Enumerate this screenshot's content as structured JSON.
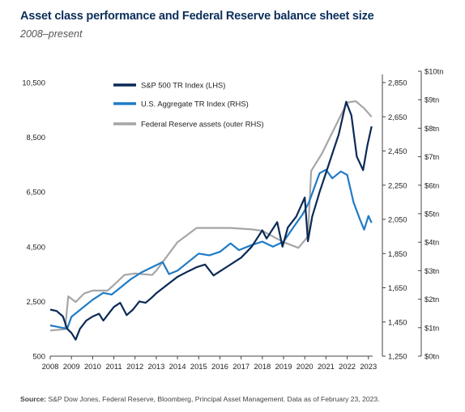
{
  "title": "Asset class performance and Federal Reserve balance sheet size",
  "subtitle": "2008–present",
  "source_label": "Source:",
  "source_text": "S&P Dow Jones, Federal Reserve, Bloomberg, Principal Asset Management. Data as of February 23, 2023.",
  "chart_data": {
    "type": "line",
    "title": "Asset class performance and Federal Reserve balance sheet size",
    "subtitle": "2008–present",
    "x_range": [
      2008.0,
      2023.2
    ],
    "x_ticks": [
      "2008",
      "2009",
      "2010",
      "2011",
      "2012",
      "2013",
      "2014",
      "2015",
      "2016",
      "2017",
      "2018",
      "2019",
      "2020",
      "2021",
      "2022",
      "2023"
    ],
    "axes": {
      "left": {
        "ylim": [
          500,
          10500
        ],
        "ticks": [
          "500",
          "2,500",
          "4,500",
          "6,500",
          "8,500",
          "10,500"
        ]
      },
      "right": {
        "ylim": [
          1250,
          2850
        ],
        "ticks": [
          "1,250",
          "1,450",
          "1,650",
          "1,850",
          "2,050",
          "2,250",
          "2,450",
          "2,650",
          "2,850"
        ]
      },
      "outer_right": {
        "ylim": [
          0,
          10
        ],
        "ticks": [
          "$0tn",
          "$1tn",
          "$2tn",
          "$3tn",
          "$4tn",
          "$5tn",
          "$6tn",
          "$7tn",
          "$8tn",
          "$9tn",
          "$10tn"
        ]
      }
    },
    "legend_position": "top-left",
    "series": [
      {
        "name": "S&P 500 TR Index (LHS)",
        "axis": "left",
        "color": "#0b2a55",
        "points": [
          [
            2008.0,
            2200
          ],
          [
            2008.3,
            2150
          ],
          [
            2008.6,
            1950
          ],
          [
            2008.8,
            1500
          ],
          [
            2009.0,
            1350
          ],
          [
            2009.2,
            1100
          ],
          [
            2009.4,
            1500
          ],
          [
            2009.7,
            1800
          ],
          [
            2010.0,
            1950
          ],
          [
            2010.3,
            2050
          ],
          [
            2010.5,
            1800
          ],
          [
            2010.8,
            2100
          ],
          [
            2011.0,
            2300
          ],
          [
            2011.3,
            2450
          ],
          [
            2011.6,
            2000
          ],
          [
            2011.9,
            2200
          ],
          [
            2012.2,
            2500
          ],
          [
            2012.5,
            2450
          ],
          [
            2012.8,
            2650
          ],
          [
            2013.0,
            2800
          ],
          [
            2013.5,
            3100
          ],
          [
            2014.0,
            3400
          ],
          [
            2014.5,
            3600
          ],
          [
            2014.9,
            3750
          ],
          [
            2015.3,
            3850
          ],
          [
            2015.7,
            3450
          ],
          [
            2016.0,
            3600
          ],
          [
            2016.4,
            3800
          ],
          [
            2016.8,
            4000
          ],
          [
            2017.0,
            4100
          ],
          [
            2017.5,
            4500
          ],
          [
            2018.0,
            5100
          ],
          [
            2018.2,
            4800
          ],
          [
            2018.7,
            5400
          ],
          [
            2018.95,
            4500
          ],
          [
            2019.2,
            5200
          ],
          [
            2019.6,
            5600
          ],
          [
            2020.0,
            6300
          ],
          [
            2020.15,
            4700
          ],
          [
            2020.35,
            5600
          ],
          [
            2020.7,
            6500
          ],
          [
            2021.0,
            7200
          ],
          [
            2021.3,
            7900
          ],
          [
            2021.6,
            8600
          ],
          [
            2021.95,
            9800
          ],
          [
            2022.2,
            9300
          ],
          [
            2022.45,
            7800
          ],
          [
            2022.75,
            7300
          ],
          [
            2022.95,
            8200
          ],
          [
            2023.15,
            8900
          ]
        ]
      },
      {
        "name": "U.S. Aggregate TR Index (RHS)",
        "axis": "right",
        "color": "#1f7bc6",
        "points": [
          [
            2008.0,
            1430
          ],
          [
            2008.4,
            1420
          ],
          [
            2008.8,
            1410
          ],
          [
            2009.0,
            1480
          ],
          [
            2009.3,
            1510
          ],
          [
            2009.7,
            1550
          ],
          [
            2010.0,
            1580
          ],
          [
            2010.5,
            1620
          ],
          [
            2010.9,
            1610
          ],
          [
            2011.3,
            1650
          ],
          [
            2011.8,
            1700
          ],
          [
            2012.3,
            1740
          ],
          [
            2012.8,
            1770
          ],
          [
            2013.3,
            1800
          ],
          [
            2013.6,
            1730
          ],
          [
            2014.0,
            1750
          ],
          [
            2014.5,
            1800
          ],
          [
            2015.0,
            1850
          ],
          [
            2015.5,
            1840
          ],
          [
            2016.0,
            1860
          ],
          [
            2016.5,
            1910
          ],
          [
            2016.9,
            1870
          ],
          [
            2017.5,
            1900
          ],
          [
            2018.0,
            1920
          ],
          [
            2018.5,
            1890
          ],
          [
            2019.0,
            1920
          ],
          [
            2019.5,
            2010
          ],
          [
            2019.9,
            2080
          ],
          [
            2020.2,
            2150
          ],
          [
            2020.7,
            2320
          ],
          [
            2021.0,
            2340
          ],
          [
            2021.3,
            2290
          ],
          [
            2021.7,
            2330
          ],
          [
            2022.0,
            2310
          ],
          [
            2022.3,
            2150
          ],
          [
            2022.6,
            2050
          ],
          [
            2022.8,
            1990
          ],
          [
            2023.0,
            2070
          ],
          [
            2023.15,
            2030
          ]
        ]
      },
      {
        "name": "Federal Reserve assets (outer RHS)",
        "axis": "outer_right",
        "color": "#a6a6a6",
        "points": [
          [
            2008.0,
            0.9
          ],
          [
            2008.7,
            0.95
          ],
          [
            2008.85,
            2.1
          ],
          [
            2009.2,
            1.9
          ],
          [
            2009.6,
            2.2
          ],
          [
            2010.0,
            2.3
          ],
          [
            2010.7,
            2.3
          ],
          [
            2011.0,
            2.5
          ],
          [
            2011.5,
            2.85
          ],
          [
            2012.0,
            2.9
          ],
          [
            2012.8,
            2.85
          ],
          [
            2013.0,
            3.0
          ],
          [
            2013.5,
            3.5
          ],
          [
            2014.0,
            4.0
          ],
          [
            2014.9,
            4.5
          ],
          [
            2015.5,
            4.5
          ],
          [
            2016.5,
            4.5
          ],
          [
            2017.5,
            4.45
          ],
          [
            2018.0,
            4.4
          ],
          [
            2018.5,
            4.2
          ],
          [
            2019.0,
            4.0
          ],
          [
            2019.7,
            3.8
          ],
          [
            2020.15,
            4.2
          ],
          [
            2020.3,
            6.5
          ],
          [
            2020.8,
            7.1
          ],
          [
            2021.2,
            7.7
          ],
          [
            2021.6,
            8.3
          ],
          [
            2022.0,
            8.9
          ],
          [
            2022.4,
            8.95
          ],
          [
            2022.8,
            8.7
          ],
          [
            2023.15,
            8.4
          ]
        ]
      }
    ]
  }
}
